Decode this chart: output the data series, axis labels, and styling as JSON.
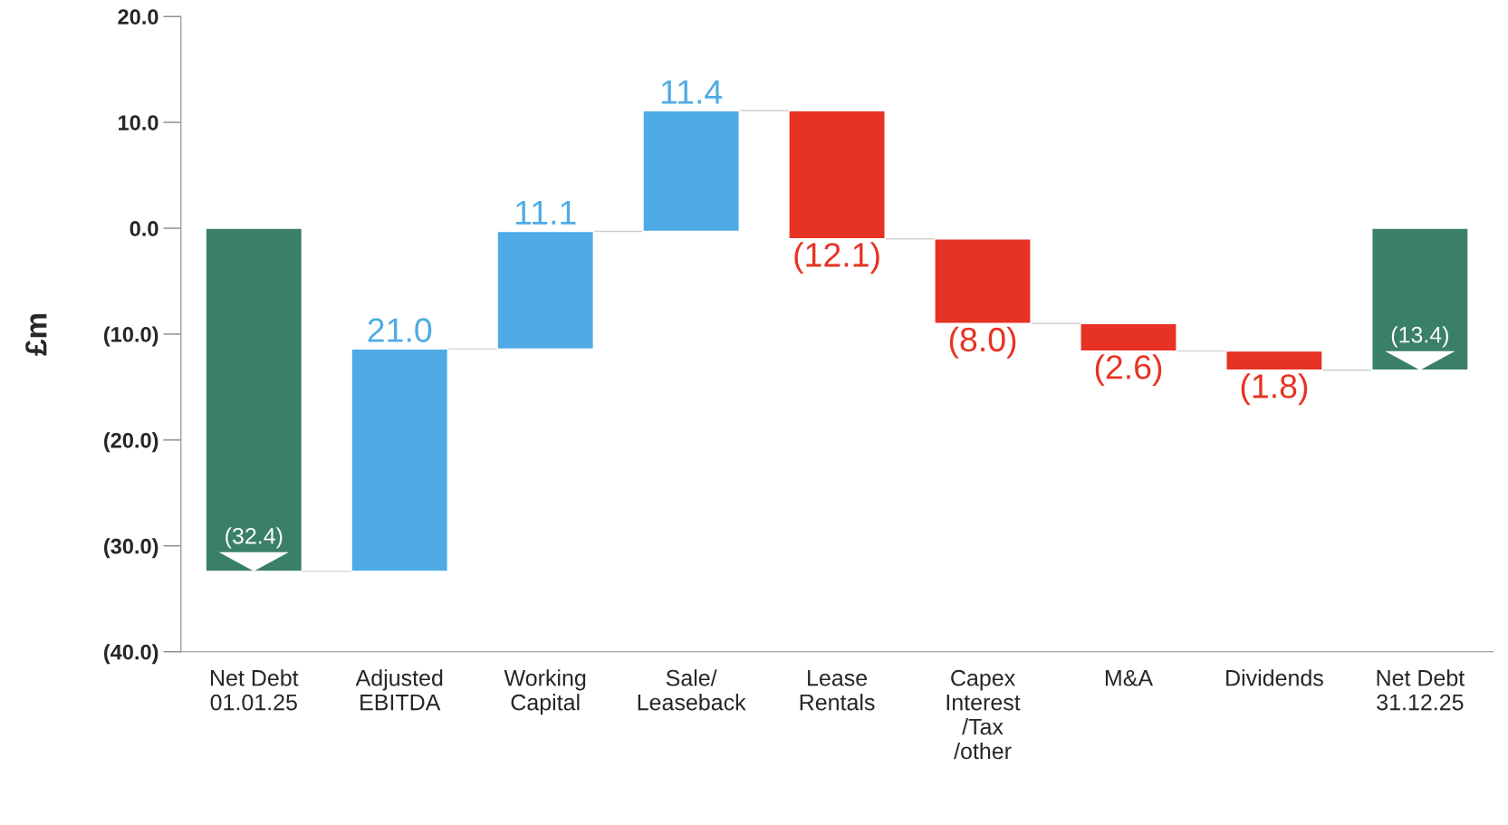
{
  "chart_data": {
    "type": "bar",
    "categories": [
      "Net Debt\n01.01.25",
      "Adjusted\nEBITDA",
      "Working\nCapital",
      "Sale/\nLeaseback",
      "Lease\nRentals",
      "Capex\nInterest\n/Tax\n/other",
      "M&A",
      "Dividends",
      "Net Debt\n31.12.25"
    ],
    "values": [
      -32.4,
      21.0,
      11.1,
      11.4,
      -12.1,
      -8.0,
      -2.6,
      -1.8,
      -13.4
    ],
    "base": [
      0,
      -32.4,
      -11.4,
      -0.3,
      11.1,
      -1.0,
      -9.0,
      -11.6,
      0
    ],
    "colors": [
      "#3a7f6a",
      "#4eabe6",
      "#4eabe6",
      "#4eabe6",
      "#e63323",
      "#e63323",
      "#e63323",
      "#e63323",
      "#3a7f6a"
    ],
    "value_labels": [
      "(32.4)",
      "21.0",
      "11.1",
      "11.4",
      "(12.1)",
      "(8.0)",
      "(2.6)",
      "(1.8)",
      "(13.4)"
    ],
    "ylabel": "£m",
    "ylim": [
      -40,
      20
    ],
    "yticks": [
      {
        "value": 20,
        "label": "20.0"
      },
      {
        "value": 10,
        "label": "10.0"
      },
      {
        "value": 0,
        "label": "0.0"
      },
      {
        "value": -10,
        "label": "(10.0)"
      },
      {
        "value": -20,
        "label": "(20.0)"
      },
      {
        "value": -30,
        "label": "(30.0)"
      },
      {
        "value": -40,
        "label": "(40.0)"
      }
    ],
    "grid": false,
    "legend": false
  }
}
